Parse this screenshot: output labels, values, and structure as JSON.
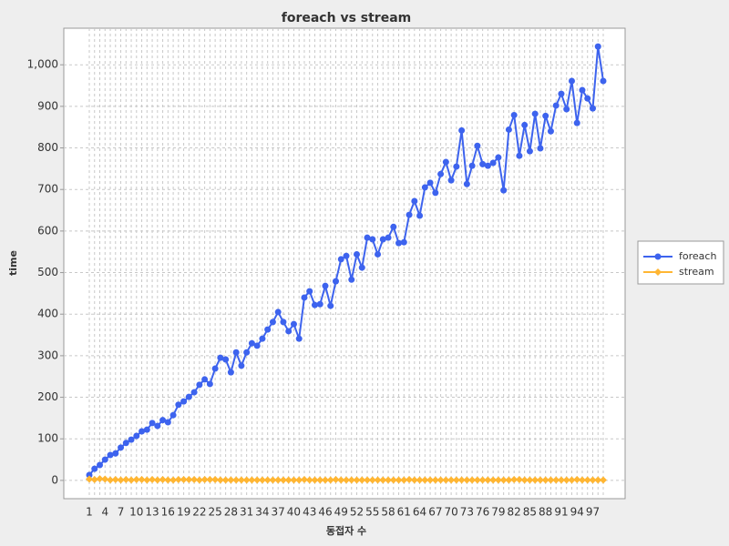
{
  "chart_data": {
    "type": "line",
    "title": "foreach vs stream",
    "x_label": "동접자 수",
    "y_label": "time",
    "categories": [
      "1",
      null,
      null,
      "4",
      null,
      null,
      "7",
      null,
      null,
      "10",
      null,
      null,
      "13",
      null,
      null,
      "16",
      null,
      null,
      "19",
      null,
      null,
      "22",
      null,
      null,
      "25",
      null,
      null,
      "28",
      null,
      null,
      "31",
      null,
      null,
      "34",
      null,
      null,
      "37",
      null,
      null,
      "40",
      null,
      null,
      "43",
      null,
      null,
      "46",
      null,
      null,
      "49",
      null,
      null,
      "52",
      null,
      null,
      "55",
      null,
      null,
      "58",
      null,
      null,
      "61",
      null,
      null,
      "64",
      null,
      null,
      "67",
      null,
      null,
      "70",
      null,
      null,
      "73",
      null,
      null,
      "76",
      null,
      null,
      "79",
      null,
      null,
      "82",
      null,
      null,
      "85",
      null,
      null,
      "88",
      null,
      null,
      "91",
      null,
      null,
      "94",
      null,
      null,
      "97",
      null,
      null
    ],
    "series": [
      {
        "name": "foreach",
        "color": "#3d63ee",
        "marker": "circle",
        "values": [
          13,
          28,
          37,
          50,
          61,
          65,
          79,
          90,
          98,
          107,
          118,
          122,
          138,
          131,
          145,
          140,
          157,
          182,
          190,
          201,
          212,
          230,
          243,
          232,
          269,
          295,
          291,
          260,
          308,
          276,
          308,
          330,
          324,
          341,
          363,
          381,
          405,
          381,
          359,
          376,
          341,
          440,
          455,
          422,
          424,
          468,
          420,
          479,
          532,
          540,
          483,
          544,
          512,
          584,
          580,
          544,
          580,
          584,
          610,
          571,
          573,
          639,
          672,
          637,
          705,
          716,
          692,
          737,
          766,
          722,
          755,
          842,
          713,
          757,
          805,
          761,
          757,
          764,
          777,
          698,
          844,
          879,
          781,
          855,
          792,
          882,
          799,
          877,
          840,
          902,
          930,
          893,
          961,
          860,
          939,
          919,
          895,
          1044,
          961
        ]
      },
      {
        "name": "stream",
        "color": "#ffb633",
        "marker": "diamond",
        "values": [
          3,
          2,
          4,
          3,
          1,
          2,
          1,
          2,
          1,
          2,
          2,
          1,
          2,
          1,
          2,
          1,
          1,
          2,
          2,
          2,
          2,
          1,
          2,
          2,
          2,
          1,
          1,
          1,
          1,
          1,
          1,
          1,
          1,
          1,
          1,
          1,
          1,
          1,
          1,
          1,
          1,
          2,
          1,
          1,
          1,
          1,
          1,
          2,
          1,
          1,
          1,
          1,
          1,
          1,
          1,
          1,
          1,
          1,
          1,
          1,
          1,
          2,
          1,
          1,
          1,
          1,
          1,
          1,
          1,
          1,
          1,
          1,
          1,
          1,
          1,
          1,
          1,
          1,
          1,
          1,
          1,
          2,
          2,
          1,
          1,
          1,
          1,
          1,
          1,
          1,
          1,
          1,
          1,
          2,
          1,
          1,
          1,
          1,
          1
        ]
      }
    ],
    "ylim": [
      -44,
      1088
    ],
    "yticks": [
      0,
      100,
      200,
      300,
      400,
      500,
      600,
      700,
      800,
      900,
      {
        "value": 1000,
        "label": "1,000"
      }
    ],
    "grid": true,
    "legend": "right"
  }
}
